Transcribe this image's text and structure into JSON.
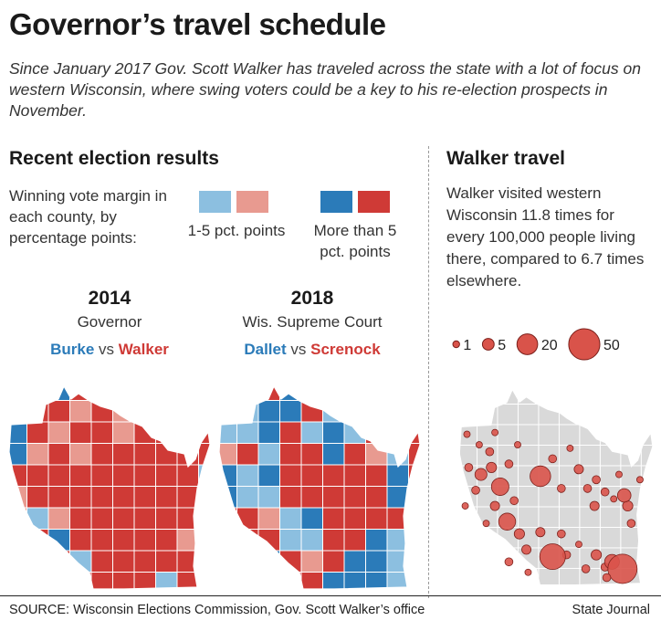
{
  "title": "Governor’s travel schedule",
  "subtitle": "Since January 2017 Gov. Scott Walker has traveled across the state with a lot of focus on western Wisconsin, where swing voters could be a key to his re-election prospects in November.",
  "left_section": {
    "heading": "Recent election results",
    "legend_intro": "Winning vote margin in each county, by percentage points:",
    "legend_small": "1-5 pct. points",
    "legend_large": "More than 5 pct. points",
    "colors": {
      "dem_light": "#8cbfe0",
      "rep_light": "#e89a90",
      "dem_dark": "#2b7bb9",
      "rep_dark": "#cf3a36"
    },
    "maps": [
      {
        "year": "2014",
        "race": "Governor",
        "dem": "Burke",
        "vs": "vs",
        "rep": "Walker"
      },
      {
        "year": "2018",
        "race": "Wis. Supreme Court",
        "dem": "Dallet",
        "vs": "vs",
        "rep": "Screnock"
      }
    ]
  },
  "right_section": {
    "heading": "Walker travel",
    "description": "Walker visited western Wisconsin 11.8 times for every 100,000 people living there, compared to 6.7 times elsewhere.",
    "size_legend": [
      {
        "label": "1",
        "value": 1
      },
      {
        "label": "5",
        "value": 5
      },
      {
        "label": "20",
        "value": 20
      },
      {
        "label": "50",
        "value": 50
      }
    ],
    "bubble_color": "#d9534a"
  },
  "footer": {
    "source": "SOURCE: Wisconsin Elections Commission, Gov. Scott Walker’s office",
    "credit": "State Journal"
  }
}
